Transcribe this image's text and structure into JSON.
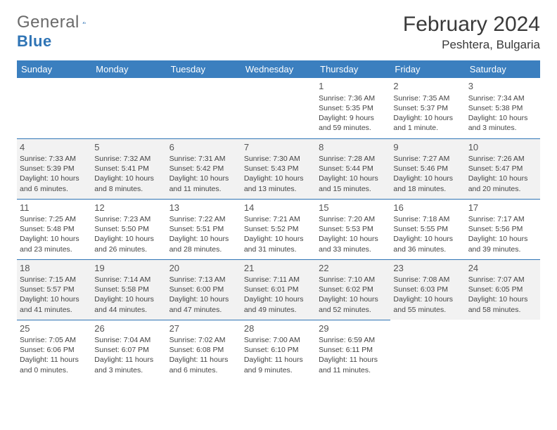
{
  "brand": {
    "word1": "General",
    "word2": "Blue",
    "mark_color": "#2f74b5",
    "text_color": "#6a6a6a"
  },
  "title": "February 2024",
  "location": "Peshtera, Bulgaria",
  "header_bg": "#3b7fbf",
  "header_fg": "#ffffff",
  "rule_color": "#2f74b5",
  "alt_row_bg": "#f2f2f2",
  "text_color": "#444444",
  "font_family": "Arial, Helvetica, sans-serif",
  "title_fontsize": 30,
  "location_fontsize": 17,
  "weekday_fontsize": 13,
  "cell_fontsize": 10.5,
  "weekdays": [
    "Sunday",
    "Monday",
    "Tuesday",
    "Wednesday",
    "Thursday",
    "Friday",
    "Saturday"
  ],
  "weeks": [
    {
      "alt": false,
      "days": [
        null,
        null,
        null,
        null,
        {
          "n": "1",
          "sunrise": "Sunrise: 7:36 AM",
          "sunset": "Sunset: 5:35 PM",
          "daylight": "Daylight: 9 hours and 59 minutes."
        },
        {
          "n": "2",
          "sunrise": "Sunrise: 7:35 AM",
          "sunset": "Sunset: 5:37 PM",
          "daylight": "Daylight: 10 hours and 1 minute."
        },
        {
          "n": "3",
          "sunrise": "Sunrise: 7:34 AM",
          "sunset": "Sunset: 5:38 PM",
          "daylight": "Daylight: 10 hours and 3 minutes."
        }
      ]
    },
    {
      "alt": true,
      "days": [
        {
          "n": "4",
          "sunrise": "Sunrise: 7:33 AM",
          "sunset": "Sunset: 5:39 PM",
          "daylight": "Daylight: 10 hours and 6 minutes."
        },
        {
          "n": "5",
          "sunrise": "Sunrise: 7:32 AM",
          "sunset": "Sunset: 5:41 PM",
          "daylight": "Daylight: 10 hours and 8 minutes."
        },
        {
          "n": "6",
          "sunrise": "Sunrise: 7:31 AM",
          "sunset": "Sunset: 5:42 PM",
          "daylight": "Daylight: 10 hours and 11 minutes."
        },
        {
          "n": "7",
          "sunrise": "Sunrise: 7:30 AM",
          "sunset": "Sunset: 5:43 PM",
          "daylight": "Daylight: 10 hours and 13 minutes."
        },
        {
          "n": "8",
          "sunrise": "Sunrise: 7:28 AM",
          "sunset": "Sunset: 5:44 PM",
          "daylight": "Daylight: 10 hours and 15 minutes."
        },
        {
          "n": "9",
          "sunrise": "Sunrise: 7:27 AM",
          "sunset": "Sunset: 5:46 PM",
          "daylight": "Daylight: 10 hours and 18 minutes."
        },
        {
          "n": "10",
          "sunrise": "Sunrise: 7:26 AM",
          "sunset": "Sunset: 5:47 PM",
          "daylight": "Daylight: 10 hours and 20 minutes."
        }
      ]
    },
    {
      "alt": false,
      "days": [
        {
          "n": "11",
          "sunrise": "Sunrise: 7:25 AM",
          "sunset": "Sunset: 5:48 PM",
          "daylight": "Daylight: 10 hours and 23 minutes."
        },
        {
          "n": "12",
          "sunrise": "Sunrise: 7:23 AM",
          "sunset": "Sunset: 5:50 PM",
          "daylight": "Daylight: 10 hours and 26 minutes."
        },
        {
          "n": "13",
          "sunrise": "Sunrise: 7:22 AM",
          "sunset": "Sunset: 5:51 PM",
          "daylight": "Daylight: 10 hours and 28 minutes."
        },
        {
          "n": "14",
          "sunrise": "Sunrise: 7:21 AM",
          "sunset": "Sunset: 5:52 PM",
          "daylight": "Daylight: 10 hours and 31 minutes."
        },
        {
          "n": "15",
          "sunrise": "Sunrise: 7:20 AM",
          "sunset": "Sunset: 5:53 PM",
          "daylight": "Daylight: 10 hours and 33 minutes."
        },
        {
          "n": "16",
          "sunrise": "Sunrise: 7:18 AM",
          "sunset": "Sunset: 5:55 PM",
          "daylight": "Daylight: 10 hours and 36 minutes."
        },
        {
          "n": "17",
          "sunrise": "Sunrise: 7:17 AM",
          "sunset": "Sunset: 5:56 PM",
          "daylight": "Daylight: 10 hours and 39 minutes."
        }
      ]
    },
    {
      "alt": true,
      "days": [
        {
          "n": "18",
          "sunrise": "Sunrise: 7:15 AM",
          "sunset": "Sunset: 5:57 PM",
          "daylight": "Daylight: 10 hours and 41 minutes."
        },
        {
          "n": "19",
          "sunrise": "Sunrise: 7:14 AM",
          "sunset": "Sunset: 5:58 PM",
          "daylight": "Daylight: 10 hours and 44 minutes."
        },
        {
          "n": "20",
          "sunrise": "Sunrise: 7:13 AM",
          "sunset": "Sunset: 6:00 PM",
          "daylight": "Daylight: 10 hours and 47 minutes."
        },
        {
          "n": "21",
          "sunrise": "Sunrise: 7:11 AM",
          "sunset": "Sunset: 6:01 PM",
          "daylight": "Daylight: 10 hours and 49 minutes."
        },
        {
          "n": "22",
          "sunrise": "Sunrise: 7:10 AM",
          "sunset": "Sunset: 6:02 PM",
          "daylight": "Daylight: 10 hours and 52 minutes."
        },
        {
          "n": "23",
          "sunrise": "Sunrise: 7:08 AM",
          "sunset": "Sunset: 6:03 PM",
          "daylight": "Daylight: 10 hours and 55 minutes."
        },
        {
          "n": "24",
          "sunrise": "Sunrise: 7:07 AM",
          "sunset": "Sunset: 6:05 PM",
          "daylight": "Daylight: 10 hours and 58 minutes."
        }
      ]
    },
    {
      "alt": false,
      "days": [
        {
          "n": "25",
          "sunrise": "Sunrise: 7:05 AM",
          "sunset": "Sunset: 6:06 PM",
          "daylight": "Daylight: 11 hours and 0 minutes."
        },
        {
          "n": "26",
          "sunrise": "Sunrise: 7:04 AM",
          "sunset": "Sunset: 6:07 PM",
          "daylight": "Daylight: 11 hours and 3 minutes."
        },
        {
          "n": "27",
          "sunrise": "Sunrise: 7:02 AM",
          "sunset": "Sunset: 6:08 PM",
          "daylight": "Daylight: 11 hours and 6 minutes."
        },
        {
          "n": "28",
          "sunrise": "Sunrise: 7:00 AM",
          "sunset": "Sunset: 6:10 PM",
          "daylight": "Daylight: 11 hours and 9 minutes."
        },
        {
          "n": "29",
          "sunrise": "Sunrise: 6:59 AM",
          "sunset": "Sunset: 6:11 PM",
          "daylight": "Daylight: 11 hours and 11 minutes."
        },
        null,
        null
      ]
    }
  ]
}
